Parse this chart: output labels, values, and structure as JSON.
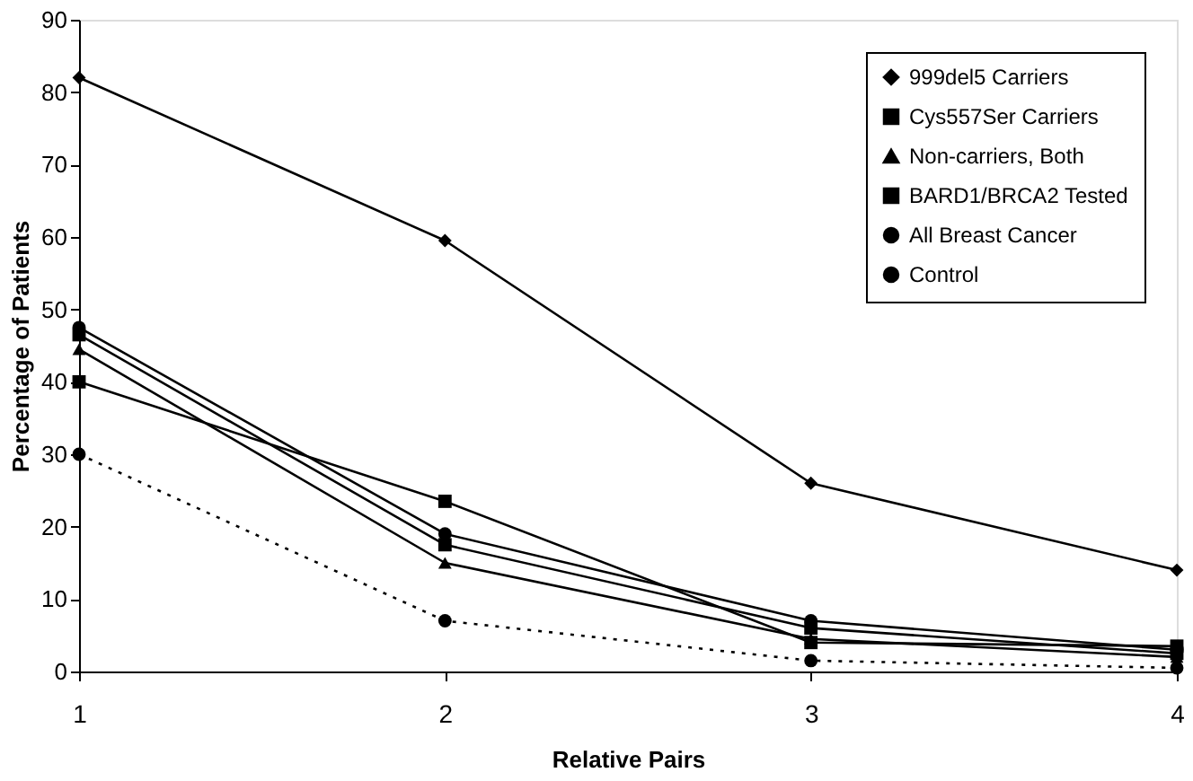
{
  "chart_data": {
    "type": "line",
    "xlabel": "Relative Pairs",
    "ylabel": "Percentage of Patients",
    "x": [
      1,
      2,
      3,
      4
    ],
    "xlim": [
      1,
      4
    ],
    "xticks": [
      1,
      2,
      3,
      4
    ],
    "ylim": [
      0,
      90
    ],
    "yticks": [
      0,
      10,
      20,
      30,
      40,
      50,
      60,
      70,
      80,
      90
    ],
    "grid": false,
    "legend": "top right",
    "series": [
      {
        "name": "999del5 Carriers",
        "color": "#000000",
        "marker": "diamond",
        "line_style": "solid",
        "values": [
          82,
          59.5,
          26,
          14
        ]
      },
      {
        "name": "Cys557Ser Carriers",
        "color": "#000000",
        "marker": "square",
        "line_style": "solid",
        "values": [
          40,
          23.5,
          4,
          3.5
        ]
      },
      {
        "name": "Non-carriers, Both",
        "color": "#000000",
        "marker": "triangle",
        "line_style": "solid",
        "values": [
          44.5,
          15,
          4.5,
          2
        ]
      },
      {
        "name": "BARD1/BRCA2 Tested",
        "color": "#000000",
        "marker": "square",
        "line_style": "solid",
        "values": [
          46.5,
          17.5,
          6,
          2.5
        ]
      },
      {
        "name": "All Breast Cancer",
        "color": "#000000",
        "marker": "circle",
        "line_style": "solid",
        "values": [
          47.5,
          19,
          7,
          3
        ]
      },
      {
        "name": "Control",
        "color": "#000000",
        "marker": "circle",
        "line_style": "dotted",
        "values": [
          30,
          7,
          1.5,
          0.5
        ]
      }
    ]
  }
}
